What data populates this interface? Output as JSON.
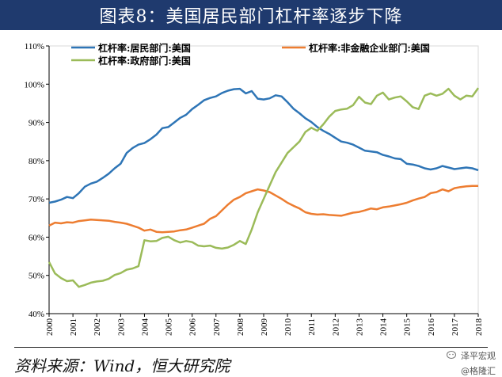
{
  "title": "图表8：美国居民部门杠杆率逐步下降",
  "source": "资料来源：Wind，恒大研究院",
  "watermark": {
    "brand": "泽平宏观",
    "handle": "@格隆汇"
  },
  "colors": {
    "title_bg": "#1f3a6e",
    "household": "#2e75b6",
    "nonfinancial": "#ed7d31",
    "government": "#9bbb59"
  },
  "chart_data": {
    "type": "line",
    "ylim": [
      40,
      110
    ],
    "xlim": [
      2000,
      2018
    ],
    "y_ticks": [
      40,
      50,
      60,
      70,
      80,
      90,
      100,
      110
    ],
    "y_tick_labels": [
      "40%",
      "50%",
      "60%",
      "70%",
      "80%",
      "90%",
      "100%",
      "110%"
    ],
    "x_ticks": [
      2000,
      2001,
      2002,
      2003,
      2004,
      2005,
      2006,
      2007,
      2008,
      2009,
      2010,
      2011,
      2012,
      2013,
      2014,
      2015,
      2016,
      2017,
      2018
    ],
    "x_tick_labels": [
      "2000",
      "2001",
      "2002",
      "2003",
      "2004",
      "2005",
      "2006",
      "2007",
      "2008",
      "2009",
      "2010",
      "2011",
      "2012",
      "2013",
      "2014",
      "2015",
      "2016",
      "2017",
      "2018"
    ],
    "grid": false,
    "legend": "top",
    "series": [
      {
        "name": "杠杆率:居民部门:美国",
        "color": "#2e75b6",
        "points": [
          [
            2000.0,
            69.0
          ],
          [
            2000.25,
            69.3
          ],
          [
            2000.5,
            69.8
          ],
          [
            2000.75,
            70.5
          ],
          [
            2001.0,
            70.2
          ],
          [
            2001.25,
            71.5
          ],
          [
            2001.5,
            73.2
          ],
          [
            2001.75,
            74.0
          ],
          [
            2002.0,
            74.5
          ],
          [
            2002.25,
            75.5
          ],
          [
            2002.5,
            76.6
          ],
          [
            2002.75,
            78.0
          ],
          [
            2003.0,
            79.2
          ],
          [
            2003.25,
            82.0
          ],
          [
            2003.5,
            83.3
          ],
          [
            2003.75,
            84.2
          ],
          [
            2004.0,
            84.6
          ],
          [
            2004.25,
            85.6
          ],
          [
            2004.5,
            86.8
          ],
          [
            2004.75,
            88.5
          ],
          [
            2005.0,
            88.8
          ],
          [
            2005.25,
            90.0
          ],
          [
            2005.5,
            91.2
          ],
          [
            2005.75,
            92.0
          ],
          [
            2006.0,
            93.5
          ],
          [
            2006.25,
            94.6
          ],
          [
            2006.5,
            95.8
          ],
          [
            2006.75,
            96.4
          ],
          [
            2007.0,
            96.8
          ],
          [
            2007.25,
            97.7
          ],
          [
            2007.5,
            98.3
          ],
          [
            2007.75,
            98.7
          ],
          [
            2008.0,
            98.8
          ],
          [
            2008.25,
            97.6
          ],
          [
            2008.5,
            98.2
          ],
          [
            2008.75,
            96.2
          ],
          [
            2009.0,
            96.0
          ],
          [
            2009.25,
            96.3
          ],
          [
            2009.5,
            97.1
          ],
          [
            2009.75,
            96.8
          ],
          [
            2010.0,
            95.3
          ],
          [
            2010.25,
            93.6
          ],
          [
            2010.5,
            92.4
          ],
          [
            2010.75,
            91.1
          ],
          [
            2011.0,
            90.1
          ],
          [
            2011.25,
            88.8
          ],
          [
            2011.5,
            87.8
          ],
          [
            2011.75,
            87.0
          ],
          [
            2012.0,
            86.0
          ],
          [
            2012.25,
            85.0
          ],
          [
            2012.5,
            84.7
          ],
          [
            2012.75,
            84.2
          ],
          [
            2013.0,
            83.4
          ],
          [
            2013.25,
            82.6
          ],
          [
            2013.5,
            82.4
          ],
          [
            2013.75,
            82.2
          ],
          [
            2014.0,
            81.5
          ],
          [
            2014.25,
            81.1
          ],
          [
            2014.5,
            80.6
          ],
          [
            2014.75,
            80.4
          ],
          [
            2015.0,
            79.2
          ],
          [
            2015.25,
            79.0
          ],
          [
            2015.5,
            78.6
          ],
          [
            2015.75,
            78.0
          ],
          [
            2016.0,
            77.7
          ],
          [
            2016.25,
            78.0
          ],
          [
            2016.5,
            78.6
          ],
          [
            2016.75,
            78.2
          ],
          [
            2017.0,
            77.8
          ],
          [
            2017.25,
            78.0
          ],
          [
            2017.5,
            78.2
          ],
          [
            2017.75,
            78.0
          ],
          [
            2018.0,
            77.5
          ]
        ]
      },
      {
        "name": "杠杆率:非金融企业部门:美国",
        "color": "#ed7d31",
        "points": [
          [
            2000.0,
            63.0
          ],
          [
            2000.25,
            63.8
          ],
          [
            2000.5,
            63.6
          ],
          [
            2000.75,
            63.9
          ],
          [
            2001.0,
            63.8
          ],
          [
            2001.25,
            64.2
          ],
          [
            2001.5,
            64.4
          ],
          [
            2001.75,
            64.6
          ],
          [
            2002.0,
            64.5
          ],
          [
            2002.25,
            64.4
          ],
          [
            2002.5,
            64.3
          ],
          [
            2002.75,
            64.0
          ],
          [
            2003.0,
            63.8
          ],
          [
            2003.25,
            63.5
          ],
          [
            2003.5,
            63.0
          ],
          [
            2003.75,
            62.5
          ],
          [
            2004.0,
            61.7
          ],
          [
            2004.25,
            62.0
          ],
          [
            2004.5,
            61.4
          ],
          [
            2004.75,
            61.3
          ],
          [
            2005.0,
            61.4
          ],
          [
            2005.25,
            61.5
          ],
          [
            2005.5,
            61.8
          ],
          [
            2005.75,
            62.0
          ],
          [
            2006.0,
            62.5
          ],
          [
            2006.25,
            63.0
          ],
          [
            2006.5,
            63.5
          ],
          [
            2006.75,
            64.8
          ],
          [
            2007.0,
            65.5
          ],
          [
            2007.25,
            67.0
          ],
          [
            2007.5,
            68.5
          ],
          [
            2007.75,
            69.8
          ],
          [
            2008.0,
            70.5
          ],
          [
            2008.25,
            71.5
          ],
          [
            2008.5,
            72.0
          ],
          [
            2008.75,
            72.5
          ],
          [
            2009.0,
            72.2
          ],
          [
            2009.25,
            71.8
          ],
          [
            2009.5,
            70.9
          ],
          [
            2009.75,
            70.0
          ],
          [
            2010.0,
            69.0
          ],
          [
            2010.25,
            68.2
          ],
          [
            2010.5,
            67.5
          ],
          [
            2010.75,
            66.5
          ],
          [
            2011.0,
            66.1
          ],
          [
            2011.25,
            65.9
          ],
          [
            2011.5,
            66.0
          ],
          [
            2011.75,
            65.8
          ],
          [
            2012.0,
            65.7
          ],
          [
            2012.25,
            65.6
          ],
          [
            2012.5,
            66.0
          ],
          [
            2012.75,
            66.4
          ],
          [
            2013.0,
            66.6
          ],
          [
            2013.25,
            67.0
          ],
          [
            2013.5,
            67.5
          ],
          [
            2013.75,
            67.3
          ],
          [
            2014.0,
            67.8
          ],
          [
            2014.25,
            68.0
          ],
          [
            2014.5,
            68.3
          ],
          [
            2014.75,
            68.6
          ],
          [
            2015.0,
            69.0
          ],
          [
            2015.25,
            69.6
          ],
          [
            2015.5,
            70.1
          ],
          [
            2015.75,
            70.5
          ],
          [
            2016.0,
            71.5
          ],
          [
            2016.25,
            71.8
          ],
          [
            2016.5,
            72.5
          ],
          [
            2016.75,
            72.0
          ],
          [
            2017.0,
            72.8
          ],
          [
            2017.25,
            73.1
          ],
          [
            2017.5,
            73.3
          ],
          [
            2017.75,
            73.4
          ],
          [
            2018.0,
            73.4
          ]
        ]
      },
      {
        "name": "杠杆率:政府部门:美国",
        "color": "#9bbb59",
        "points": [
          [
            2000.0,
            53.5
          ],
          [
            2000.25,
            50.5
          ],
          [
            2000.5,
            49.3
          ],
          [
            2000.75,
            48.5
          ],
          [
            2001.0,
            48.7
          ],
          [
            2001.25,
            47.0
          ],
          [
            2001.5,
            47.5
          ],
          [
            2001.75,
            48.1
          ],
          [
            2002.0,
            48.4
          ],
          [
            2002.25,
            48.6
          ],
          [
            2002.5,
            49.1
          ],
          [
            2002.75,
            50.1
          ],
          [
            2003.0,
            50.6
          ],
          [
            2003.25,
            51.5
          ],
          [
            2003.5,
            51.8
          ],
          [
            2003.75,
            52.4
          ],
          [
            2004.0,
            59.2
          ],
          [
            2004.25,
            58.9
          ],
          [
            2004.5,
            59.0
          ],
          [
            2004.75,
            59.8
          ],
          [
            2005.0,
            60.1
          ],
          [
            2005.25,
            59.2
          ],
          [
            2005.5,
            58.6
          ],
          [
            2005.75,
            59.0
          ],
          [
            2006.0,
            58.7
          ],
          [
            2006.25,
            57.8
          ],
          [
            2006.5,
            57.6
          ],
          [
            2006.75,
            57.8
          ],
          [
            2007.0,
            57.2
          ],
          [
            2007.25,
            57.0
          ],
          [
            2007.5,
            57.3
          ],
          [
            2007.75,
            58.0
          ],
          [
            2008.0,
            59.0
          ],
          [
            2008.25,
            58.2
          ],
          [
            2008.5,
            62.0
          ],
          [
            2008.75,
            66.5
          ],
          [
            2009.0,
            70.0
          ],
          [
            2009.25,
            73.5
          ],
          [
            2009.5,
            77.0
          ],
          [
            2009.75,
            79.5
          ],
          [
            2010.0,
            82.0
          ],
          [
            2010.25,
            83.5
          ],
          [
            2010.5,
            85.0
          ],
          [
            2010.75,
            87.5
          ],
          [
            2011.0,
            88.6
          ],
          [
            2011.25,
            87.8
          ],
          [
            2011.5,
            89.5
          ],
          [
            2011.75,
            91.5
          ],
          [
            2012.0,
            93.0
          ],
          [
            2012.25,
            93.4
          ],
          [
            2012.5,
            93.6
          ],
          [
            2012.75,
            94.5
          ],
          [
            2013.0,
            96.7
          ],
          [
            2013.25,
            95.2
          ],
          [
            2013.5,
            94.8
          ],
          [
            2013.75,
            97.0
          ],
          [
            2014.0,
            97.8
          ],
          [
            2014.25,
            96.0
          ],
          [
            2014.5,
            96.5
          ],
          [
            2014.75,
            96.8
          ],
          [
            2015.0,
            95.5
          ],
          [
            2015.25,
            94.0
          ],
          [
            2015.5,
            93.5
          ],
          [
            2015.75,
            97.0
          ],
          [
            2016.0,
            97.6
          ],
          [
            2016.25,
            97.0
          ],
          [
            2016.5,
            97.5
          ],
          [
            2016.75,
            98.8
          ],
          [
            2017.0,
            97.0
          ],
          [
            2017.25,
            96.0
          ],
          [
            2017.5,
            97.0
          ],
          [
            2017.75,
            96.8
          ],
          [
            2018.0,
            99.0
          ]
        ]
      }
    ]
  }
}
